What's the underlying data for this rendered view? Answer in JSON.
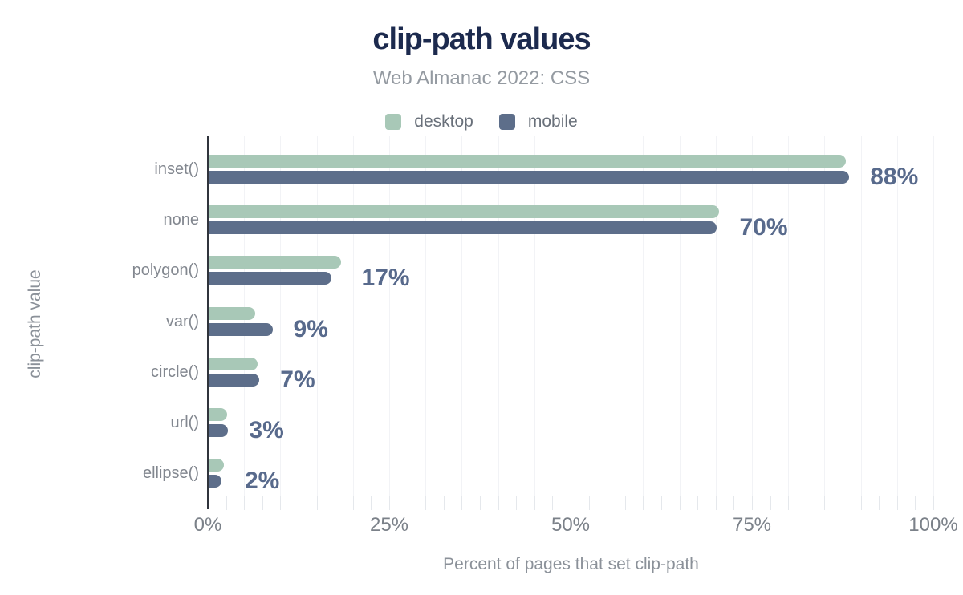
{
  "chart_data": {
    "type": "bar",
    "orientation": "horizontal",
    "title": "clip-path values",
    "subtitle": "Web Almanac 2022: CSS",
    "xlabel": "Percent of pages that set clip-path",
    "ylabel": "clip-path value",
    "categories": [
      "inset()",
      "none",
      "polygon()",
      "var()",
      "circle()",
      "url()",
      "ellipse()"
    ],
    "series": [
      {
        "name": "desktop",
        "color": "#a8c8b7",
        "values": [
          87.8,
          70.3,
          18.2,
          6.4,
          6.8,
          2.5,
          2.1
        ]
      },
      {
        "name": "mobile",
        "color": "#5d6e8a",
        "values": [
          88.3,
          70.0,
          16.9,
          8.8,
          7.0,
          2.7,
          1.8
        ]
      }
    ],
    "annotations": [
      "88%",
      "70%",
      "17%",
      "9%",
      "7%",
      "3%",
      "2%"
    ],
    "xlim": [
      0,
      100
    ],
    "x_tick_labels": [
      "0%",
      "25%",
      "50%",
      "75%",
      "100%"
    ],
    "x_tick_values": [
      0,
      25,
      50,
      75,
      100
    ],
    "minor_tick_step": 2.5,
    "gridline_step": 5,
    "grid": true,
    "legend_position": "top"
  },
  "colors": {
    "title": "#1c2a4e",
    "subtitle": "#949aa1",
    "annotation": "#586a8c",
    "axis_line": "#30343c",
    "desktop": "#a8c8b7",
    "mobile": "#5d6e8a"
  }
}
